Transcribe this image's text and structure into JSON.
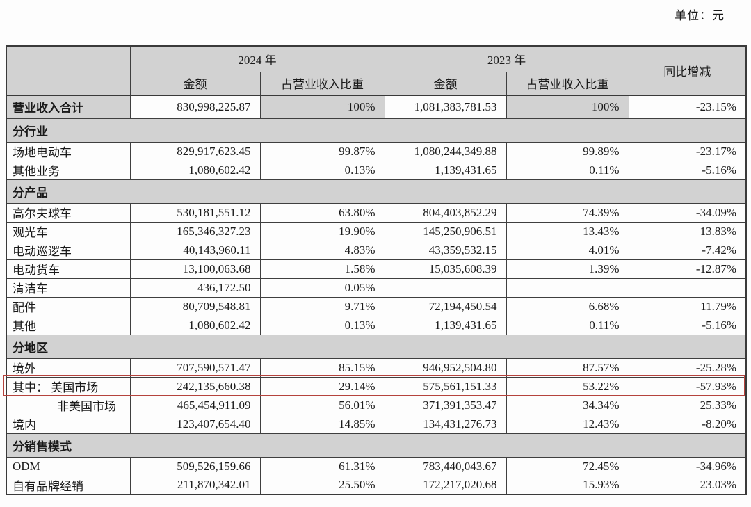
{
  "unit_label": "单位：元",
  "colors": {
    "header_bg": "#d2d2d2",
    "section_bg": "#d2d2d2",
    "highlight_border": "#b5433d",
    "table_border": "#3f3f3f"
  },
  "table": {
    "header": {
      "year_2024": "2024 年",
      "year_2023": "2023 年",
      "amount_2024": "金额",
      "ratio_2024": "占营业收入比重",
      "amount_2023": "金额",
      "ratio_2023": "占营业收入比重",
      "yoy": "同比增减"
    },
    "rows": [
      {
        "type": "total",
        "label": "营业收入合计",
        "a2024": "830,998,225.87",
        "r2024": "100%",
        "a2023": "1,081,383,781.53",
        "r2023": "100%",
        "yoy": "-23.15%"
      },
      {
        "type": "section",
        "label": "分行业"
      },
      {
        "type": "data",
        "label": "场地电动车",
        "a2024": "829,917,623.45",
        "r2024": "99.87%",
        "a2023": "1,080,244,349.88",
        "r2023": "99.89%",
        "yoy": "-23.17%"
      },
      {
        "type": "data",
        "label": "其他业务",
        "a2024": "1,080,602.42",
        "r2024": "0.13%",
        "a2023": "1,139,431.65",
        "r2023": "0.11%",
        "yoy": "-5.16%"
      },
      {
        "type": "section",
        "label": "分产品"
      },
      {
        "type": "data",
        "label": "高尔夫球车",
        "a2024": "530,181,551.12",
        "r2024": "63.80%",
        "a2023": "804,403,852.29",
        "r2023": "74.39%",
        "yoy": "-34.09%"
      },
      {
        "type": "data",
        "label": "观光车",
        "a2024": "165,346,327.23",
        "r2024": "19.90%",
        "a2023": "145,250,906.51",
        "r2023": "13.43%",
        "yoy": "13.83%"
      },
      {
        "type": "data",
        "label": "电动巡逻车",
        "a2024": "40,143,960.11",
        "r2024": "4.83%",
        "a2023": "43,359,532.15",
        "r2023": "4.01%",
        "yoy": "-7.42%"
      },
      {
        "type": "data",
        "label": "电动货车",
        "a2024": "13,100,063.68",
        "r2024": "1.58%",
        "a2023": "15,035,608.39",
        "r2023": "1.39%",
        "yoy": "-12.87%"
      },
      {
        "type": "data",
        "label": "清洁车",
        "a2024": "436,172.50",
        "r2024": "0.05%",
        "a2023": "",
        "r2023": "",
        "yoy": ""
      },
      {
        "type": "data",
        "label": "配件",
        "a2024": "80,709,548.81",
        "r2024": "9.71%",
        "a2023": "72,194,450.54",
        "r2023": "6.68%",
        "yoy": "11.79%"
      },
      {
        "type": "data",
        "label": "其他",
        "a2024": "1,080,602.42",
        "r2024": "0.13%",
        "a2023": "1,139,431.65",
        "r2023": "0.11%",
        "yoy": "-5.16%"
      },
      {
        "type": "section",
        "label": "分地区"
      },
      {
        "type": "data",
        "label": "境外",
        "a2024": "707,590,571.47",
        "r2024": "85.15%",
        "a2023": "946,952,504.80",
        "r2023": "87.57%",
        "yoy": "-25.28%"
      },
      {
        "type": "data",
        "label": "其中： 美国市场",
        "highlighted": true,
        "a2024": "242,135,660.38",
        "r2024": "29.14%",
        "a2023": "575,561,151.33",
        "r2023": "53.22%",
        "yoy": "-57.93%"
      },
      {
        "type": "data",
        "label": "非美国市场",
        "indent": true,
        "a2024": "465,454,911.09",
        "r2024": "56.01%",
        "a2023": "371,391,353.47",
        "r2023": "34.34%",
        "yoy": "25.33%"
      },
      {
        "type": "data",
        "label": "境内",
        "a2024": "123,407,654.40",
        "r2024": "14.85%",
        "a2023": "134,431,276.73",
        "r2023": "12.43%",
        "yoy": "-8.20%"
      },
      {
        "type": "section",
        "label": "分销售模式"
      },
      {
        "type": "data",
        "label": "ODM",
        "a2024": "509,526,159.66",
        "r2024": "61.31%",
        "a2023": "783,440,043.67",
        "r2023": "72.45%",
        "yoy": "-34.96%"
      },
      {
        "type": "data",
        "label": "自有品牌经销",
        "a2024": "211,870,342.01",
        "r2024": "25.50%",
        "a2023": "172,217,020.68",
        "r2023": "15.93%",
        "yoy": "23.03%"
      }
    ]
  }
}
